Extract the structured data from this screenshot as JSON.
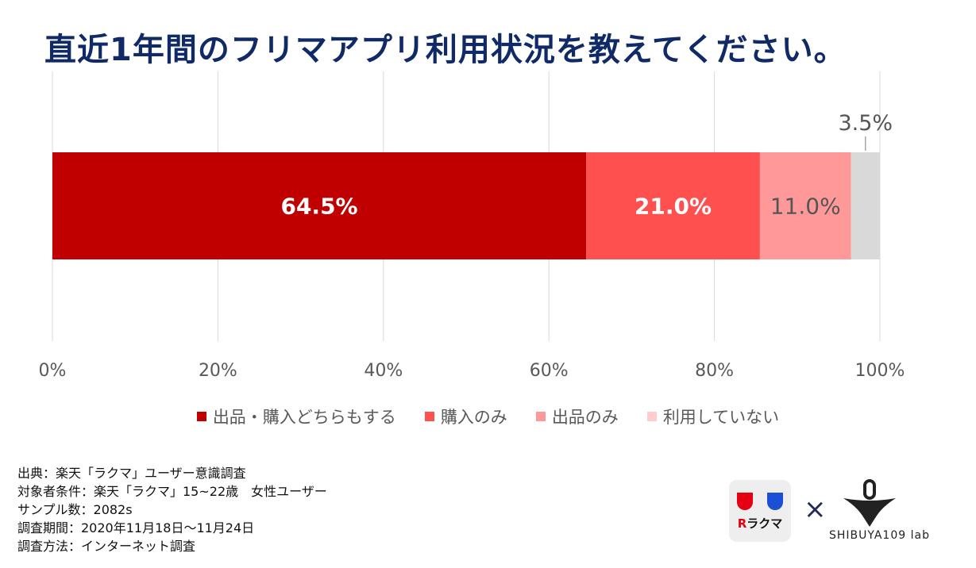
{
  "title": "直近1年間のフリマアプリ利用状況を教えてください。",
  "chart_data": {
    "type": "bar",
    "orientation": "horizontal",
    "stacked": "percent",
    "title": "直近1年間のフリマアプリ利用状況を教えてください。",
    "x_ticks": [
      "0%",
      "20%",
      "40%",
      "60%",
      "80%",
      "100%"
    ],
    "xlim": [
      0,
      100
    ],
    "grid": "vertical",
    "legend_position": "bottom",
    "series": [
      {
        "name": "出品・購入どちらもする",
        "value": 64.5,
        "label": "64.5%",
        "color": "#c00000",
        "label_color": "#ffffff",
        "bold": true
      },
      {
        "name": "購入のみ",
        "value": 21.0,
        "label": "21.0%",
        "color": "#ff5050",
        "label_color": "#ffffff",
        "bold": true
      },
      {
        "name": "出品のみ",
        "value": 11.0,
        "label": "11.0%",
        "color": "#ff9999",
        "label_color": "#555555",
        "bold": false
      },
      {
        "name": "利用していない",
        "value": 3.5,
        "label": "3.5%",
        "color": "#d9d9d9",
        "label_color": "#555555",
        "bold": false,
        "callout": true
      }
    ]
  },
  "legend_colors": [
    "#c00000",
    "#ff5050",
    "#ff9999",
    "#ffcccc"
  ],
  "notes": [
    "出典：楽天「ラクマ」ユーザー意識調査",
    "対象者条件：楽天「ラクマ」15~22歳　女性ユーザー",
    "サンプル数：2082s",
    "調査期間：2020年11月18日〜11月24日",
    "調査方法：インターネット調査"
  ],
  "logos": {
    "rakuma_r": "R",
    "rakuma_text": "ラクマ",
    "times": "×",
    "shibuya": "SHIBUYA109 lab"
  }
}
